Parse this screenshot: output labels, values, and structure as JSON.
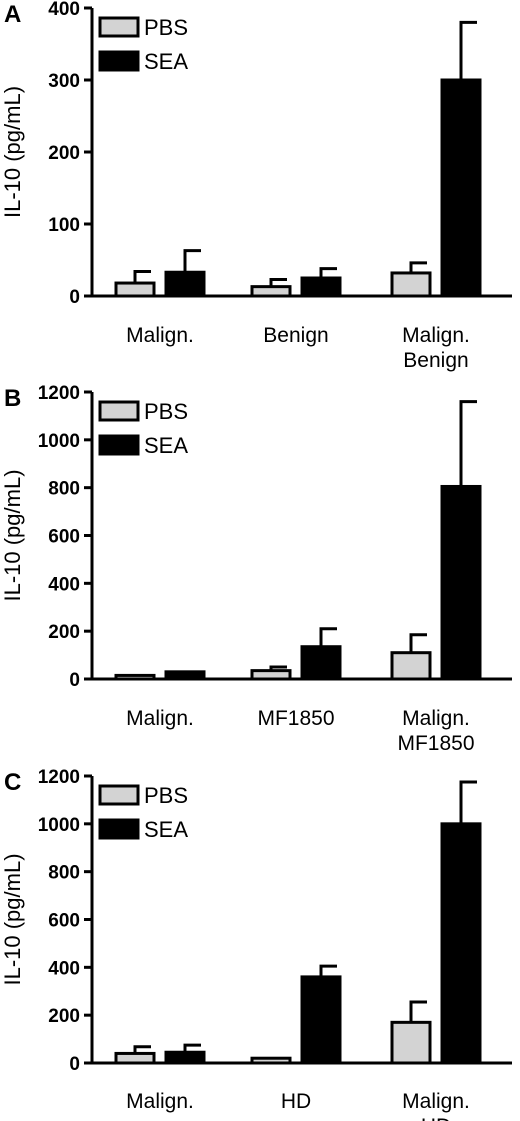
{
  "chart_data": [
    {
      "type": "bar",
      "panel_label": "A",
      "ylabel": "IL-10  (pg/mL)",
      "ylim": [
        0,
        400
      ],
      "yticks": [
        "0",
        "100",
        "200",
        "300",
        "400"
      ],
      "categories": [
        [
          "Malign."
        ],
        [
          "Benign"
        ],
        [
          "Malign.",
          "Benign"
        ]
      ],
      "series": [
        {
          "name": "PBS",
          "color": "#d3d3d3",
          "values": [
            18,
            13,
            32
          ],
          "errors": [
            16,
            10,
            14
          ]
        },
        {
          "name": "SEA",
          "color": "#000000",
          "values": [
            33,
            25,
            300
          ],
          "errors": [
            30,
            13,
            80
          ]
        }
      ],
      "legend": "top-left"
    },
    {
      "type": "bar",
      "panel_label": "B",
      "ylabel": "IL-10  (pg/mL)",
      "ylim": [
        0,
        1200
      ],
      "yticks": [
        "0",
        "200",
        "400",
        "600",
        "800",
        "1000",
        "1200"
      ],
      "categories": [
        [
          "Malign."
        ],
        [
          "MF1850"
        ],
        [
          "Malign.",
          "MF1850"
        ]
      ],
      "series": [
        {
          "name": "PBS",
          "color": "#d3d3d3",
          "values": [
            15,
            35,
            110
          ],
          "errors": [
            0,
            15,
            75
          ]
        },
        {
          "name": "SEA",
          "color": "#000000",
          "values": [
            30,
            135,
            805
          ],
          "errors": [
            0,
            75,
            355
          ]
        }
      ],
      "legend": "top-left"
    },
    {
      "type": "bar",
      "panel_label": "C",
      "ylabel": "IL-10  (pg/mL)",
      "ylim": [
        0,
        1200
      ],
      "yticks": [
        "0",
        "200",
        "400",
        "600",
        "800",
        "1000",
        "1200"
      ],
      "categories": [
        [
          "Malign."
        ],
        [
          "HD"
        ],
        [
          "Malign.",
          "HD"
        ]
      ],
      "series": [
        {
          "name": "PBS",
          "color": "#d3d3d3",
          "values": [
            40,
            20,
            170
          ],
          "errors": [
            28,
            0,
            85
          ]
        },
        {
          "name": "SEA",
          "color": "#000000",
          "values": [
            45,
            360,
            1000
          ],
          "errors": [
            30,
            45,
            175
          ]
        }
      ],
      "legend": "top-left"
    }
  ]
}
